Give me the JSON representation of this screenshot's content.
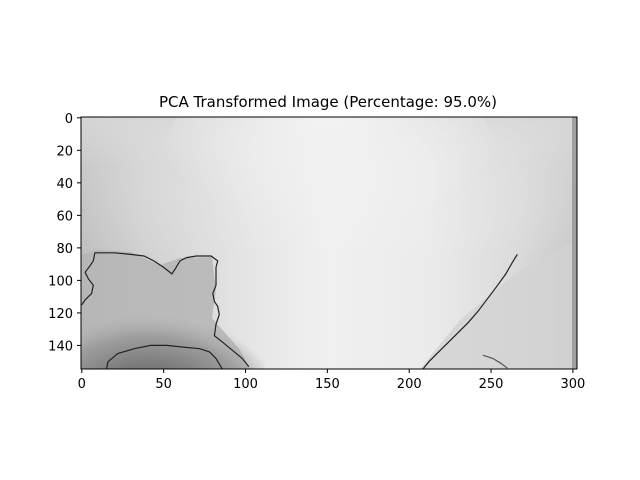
{
  "chart_data": {
    "type": "heatmap",
    "title": "PCA Transformed Image (Percentage: 95.0%)",
    "colormap": "gray",
    "image_width": 303,
    "image_height": 155,
    "xlim": [
      -0.5,
      302.5
    ],
    "ylim": [
      154.5,
      -0.5
    ],
    "x_ticks": [
      0,
      50,
      100,
      150,
      200,
      250,
      300
    ],
    "y_ticks": [
      0,
      20,
      40,
      60,
      80,
      100,
      120,
      140
    ],
    "x_tick_labels": [
      "0",
      "50",
      "100",
      "150",
      "200",
      "250",
      "300"
    ],
    "y_tick_labels": [
      "0",
      "20",
      "40",
      "60",
      "80",
      "100",
      "120",
      "140"
    ],
    "contours": [
      {
        "name": "left-region-outline",
        "points": [
          [
            0,
            115
          ],
          [
            2,
            112
          ],
          [
            6,
            108
          ],
          [
            7,
            103
          ],
          [
            4,
            99
          ],
          [
            2,
            95
          ],
          [
            5,
            91
          ],
          [
            7,
            88
          ],
          [
            8,
            83
          ],
          [
            20,
            83
          ],
          [
            30,
            84
          ],
          [
            38,
            85
          ],
          [
            44,
            88
          ],
          [
            50,
            92
          ],
          [
            55,
            96
          ],
          [
            57,
            93
          ],
          [
            60,
            88
          ],
          [
            64,
            86
          ],
          [
            70,
            85
          ],
          [
            79,
            85
          ],
          [
            83,
            88
          ],
          [
            82,
            92
          ],
          [
            82,
            103
          ],
          [
            80,
            108
          ],
          [
            81,
            113
          ],
          [
            83,
            116
          ],
          [
            84,
            121
          ],
          [
            82,
            127
          ],
          [
            81,
            134
          ],
          [
            86,
            138
          ],
          [
            92,
            143
          ],
          [
            98,
            148
          ],
          [
            102,
            153
          ]
        ]
      },
      {
        "name": "lower-left-dark-outline",
        "points": [
          [
            15,
            155
          ],
          [
            16,
            150
          ],
          [
            22,
            145
          ],
          [
            32,
            142
          ],
          [
            42,
            140
          ],
          [
            52,
            140
          ],
          [
            62,
            141
          ],
          [
            72,
            142
          ],
          [
            78,
            144
          ],
          [
            82,
            148
          ],
          [
            86,
            155
          ]
        ]
      },
      {
        "name": "right-diagonal-outline",
        "points": [
          [
            208,
            155
          ],
          [
            212,
            150
          ],
          [
            217,
            145
          ],
          [
            222,
            140
          ],
          [
            230,
            132
          ],
          [
            236,
            126
          ],
          [
            242,
            119
          ],
          [
            248,
            111
          ],
          [
            254,
            103
          ],
          [
            259,
            96
          ],
          [
            263,
            89
          ],
          [
            266,
            84
          ]
        ]
      },
      {
        "name": "right-lower-faint-outline",
        "points": [
          [
            245,
            146
          ],
          [
            251,
            148
          ],
          [
            256,
            151
          ],
          [
            260,
            154
          ]
        ]
      }
    ]
  }
}
